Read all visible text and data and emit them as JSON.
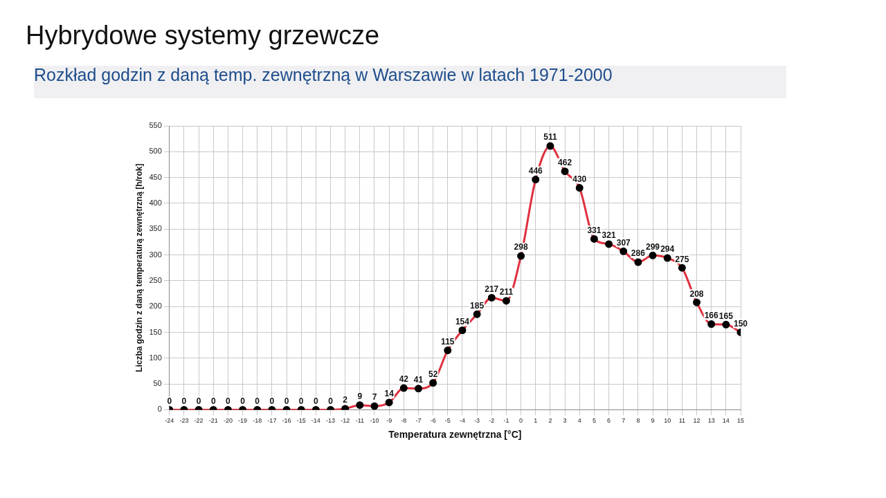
{
  "chart_data": {
    "type": "line",
    "title": "Hybrydowe systemy grzewcze",
    "subtitle": "Rozkład godzin z daną temp. zewnętrzną w Warszawie w latach 1971-2000",
    "xlabel": "Temperatura zewnętrzna [°C]",
    "ylabel": "Liczba godzin z daną temperaturą zewnętrzną [h/rok]",
    "x": [
      -24,
      -23,
      -22,
      -21,
      -20,
      -19,
      -18,
      -17,
      -16,
      -15,
      -14,
      -13,
      -12,
      -11,
      -10,
      -9,
      -8,
      -7,
      -6,
      -5,
      -4,
      -3,
      -2,
      -1,
      0,
      1,
      2,
      3,
      4,
      5,
      6,
      7,
      8,
      9,
      10,
      11,
      12,
      13,
      14,
      15
    ],
    "series": [
      {
        "color": "#e0303f",
        "values": [
          0,
          0,
          0,
          0,
          0,
          0,
          0,
          0,
          0,
          0,
          0,
          0,
          2,
          9,
          7,
          14,
          42,
          41,
          52,
          115,
          154,
          185,
          217,
          211,
          298,
          446,
          511,
          462,
          430,
          331,
          321,
          307,
          286,
          299,
          294,
          275,
          208,
          166,
          165,
          150
        ]
      }
    ],
    "xlim": [
      -24,
      15
    ],
    "xticks": [
      -24,
      -23,
      -22,
      -21,
      -20,
      -19,
      -18,
      -17,
      -16,
      -15,
      -14,
      -13,
      -12,
      -11,
      -10,
      -9,
      -8,
      -7,
      -6,
      -5,
      -4,
      -3,
      -2,
      -1,
      0,
      1,
      2,
      3,
      4,
      5,
      6,
      7,
      8,
      9,
      10,
      11,
      12,
      13,
      14,
      15
    ],
    "ylim": [
      0,
      550
    ],
    "yticks": [
      0,
      50,
      100,
      150,
      200,
      250,
      300,
      350,
      400,
      450,
      500,
      550
    ],
    "grid": true,
    "legend": false,
    "marker": "circle",
    "line_style": "solid",
    "data_labels": true
  }
}
